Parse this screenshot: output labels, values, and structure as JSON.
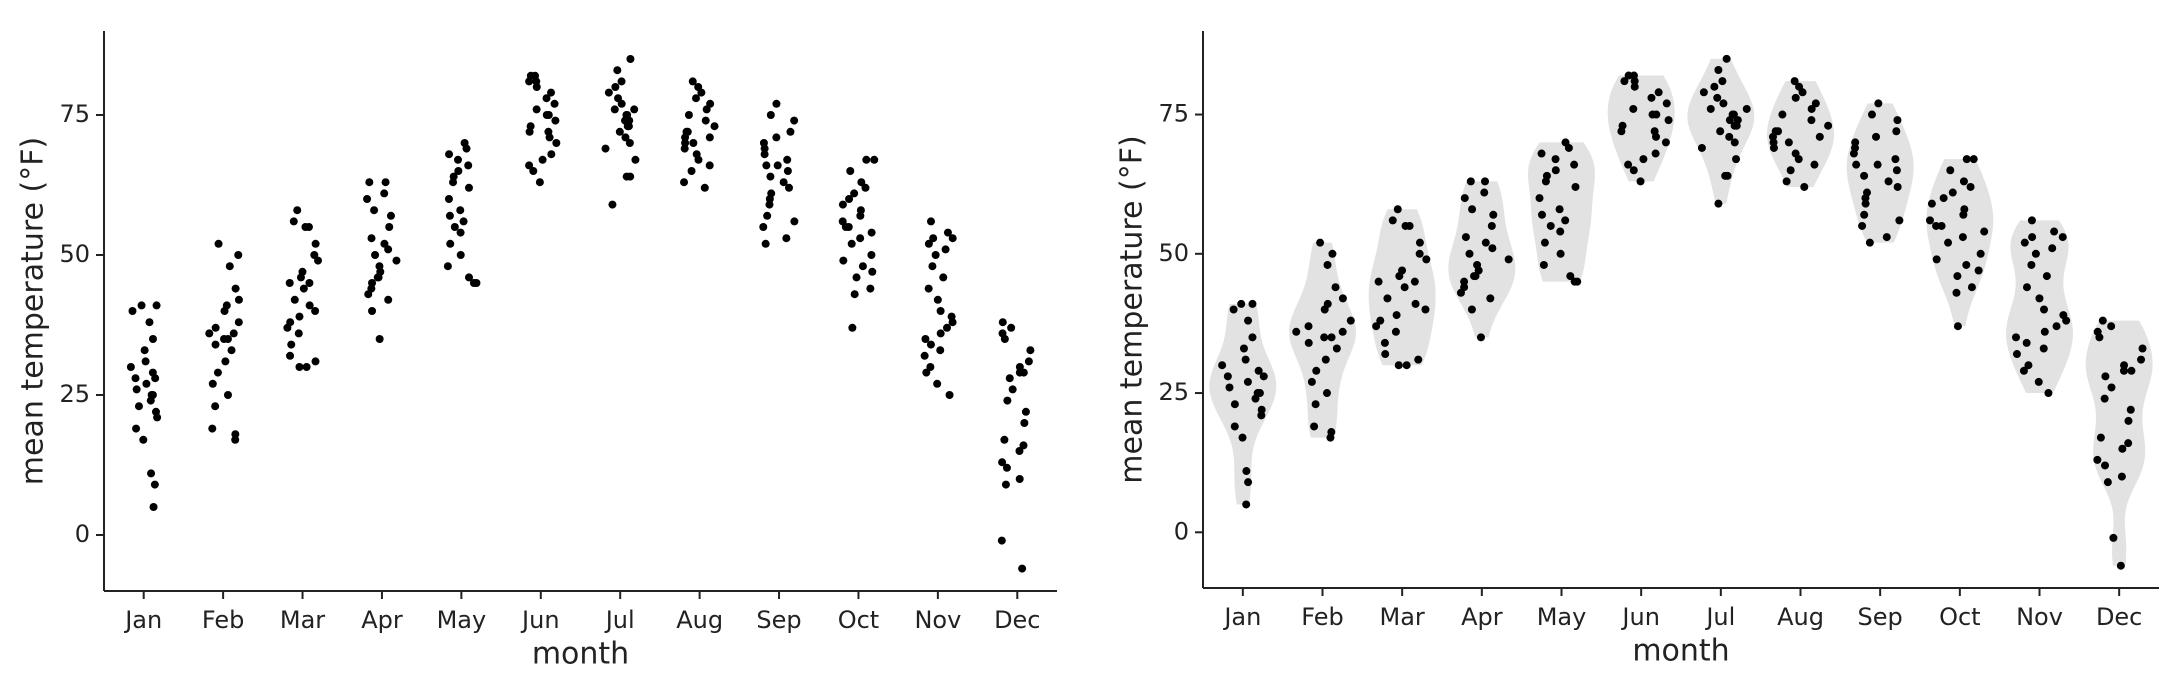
{
  "chart_data": [
    {
      "type": "strip",
      "x_label": "month",
      "y_label": "mean temperature (°F)",
      "categories": [
        "Jan",
        "Feb",
        "Mar",
        "Apr",
        "May",
        "Jun",
        "Jul",
        "Aug",
        "Sep",
        "Oct",
        "Nov",
        "Dec"
      ],
      "values": [
        [
          5,
          9,
          11,
          17,
          19,
          21,
          22,
          23,
          24,
          25,
          25,
          26,
          27,
          28,
          28,
          29,
          30,
          31,
          33,
          35,
          38,
          40,
          41,
          41
        ],
        [
          17,
          18,
          19,
          23,
          25,
          27,
          29,
          31,
          33,
          34,
          35,
          35,
          36,
          36,
          37,
          38,
          40,
          41,
          42,
          44,
          48,
          50,
          52
        ],
        [
          30,
          30,
          31,
          32,
          34,
          36,
          37,
          38,
          39,
          40,
          41,
          42,
          44,
          45,
          45,
          46,
          47,
          49,
          50,
          52,
          55,
          55,
          56,
          58
        ],
        [
          35,
          40,
          42,
          43,
          44,
          45,
          46,
          46,
          47,
          48,
          49,
          50,
          51,
          52,
          53,
          55,
          57,
          58,
          60,
          61,
          63,
          63
        ],
        [
          45,
          45,
          46,
          48,
          50,
          52,
          54,
          55,
          56,
          57,
          58,
          60,
          62,
          63,
          64,
          65,
          66,
          67,
          68,
          69,
          70
        ],
        [
          63,
          65,
          66,
          67,
          68,
          70,
          71,
          72,
          72,
          73,
          74,
          75,
          75,
          76,
          77,
          78,
          79,
          80,
          81,
          81,
          82,
          82
        ],
        [
          59,
          64,
          64,
          67,
          69,
          70,
          71,
          72,
          73,
          73,
          74,
          74,
          75,
          75,
          76,
          76,
          77,
          78,
          79,
          80,
          81,
          83,
          85
        ],
        [
          62,
          63,
          65,
          66,
          67,
          68,
          69,
          70,
          70,
          71,
          71,
          72,
          72,
          73,
          74,
          75,
          76,
          77,
          78,
          79,
          80,
          81
        ],
        [
          52,
          53,
          55,
          56,
          57,
          59,
          60,
          61,
          62,
          63,
          64,
          65,
          66,
          66,
          67,
          68,
          69,
          70,
          71,
          72,
          74,
          75,
          77
        ],
        [
          37,
          43,
          44,
          46,
          47,
          48,
          49,
          50,
          52,
          53,
          54,
          55,
          55,
          56,
          57,
          58,
          59,
          60,
          61,
          62,
          63,
          65,
          67,
          67
        ],
        [
          25,
          27,
          29,
          30,
          32,
          33,
          34,
          35,
          36,
          37,
          38,
          39,
          40,
          42,
          44,
          46,
          48,
          50,
          51,
          52,
          53,
          53,
          54,
          56
        ],
        [
          -6,
          -1,
          9,
          10,
          12,
          13,
          15,
          16,
          17,
          20,
          22,
          24,
          26,
          28,
          29,
          29,
          30,
          31,
          33,
          35,
          36,
          37,
          38
        ]
      ],
      "color": "#000000",
      "ylim": [
        -10,
        90
      ],
      "yticks": [
        0,
        25,
        50,
        75
      ]
    },
    {
      "type": "sina",
      "x_label": "month",
      "y_label": "mean temperature (°F)",
      "categories": [
        "Jan",
        "Feb",
        "Mar",
        "Apr",
        "May",
        "Jun",
        "Jul",
        "Aug",
        "Sep",
        "Oct",
        "Nov",
        "Dec"
      ],
      "values": [
        [
          5,
          9,
          11,
          17,
          19,
          21,
          22,
          23,
          24,
          25,
          25,
          26,
          27,
          28,
          28,
          29,
          30,
          31,
          33,
          35,
          38,
          40,
          41,
          41
        ],
        [
          17,
          18,
          19,
          23,
          25,
          27,
          29,
          31,
          33,
          34,
          35,
          35,
          36,
          36,
          37,
          38,
          40,
          41,
          42,
          44,
          48,
          50,
          52
        ],
        [
          30,
          30,
          31,
          32,
          34,
          36,
          37,
          38,
          39,
          40,
          41,
          42,
          44,
          45,
          45,
          46,
          47,
          49,
          50,
          52,
          55,
          55,
          56,
          58
        ],
        [
          35,
          40,
          42,
          43,
          44,
          45,
          46,
          46,
          47,
          48,
          49,
          50,
          51,
          52,
          53,
          55,
          57,
          58,
          60,
          61,
          63,
          63
        ],
        [
          45,
          45,
          46,
          48,
          50,
          52,
          54,
          55,
          56,
          57,
          58,
          60,
          62,
          63,
          64,
          65,
          66,
          67,
          68,
          69,
          70
        ],
        [
          63,
          65,
          66,
          67,
          68,
          70,
          71,
          72,
          72,
          73,
          74,
          75,
          75,
          76,
          77,
          78,
          79,
          80,
          81,
          81,
          82,
          82
        ],
        [
          59,
          64,
          64,
          67,
          69,
          70,
          71,
          72,
          73,
          73,
          74,
          74,
          75,
          75,
          76,
          76,
          77,
          78,
          79,
          80,
          81,
          83,
          85
        ],
        [
          62,
          63,
          65,
          66,
          67,
          68,
          69,
          70,
          70,
          71,
          71,
          72,
          72,
          73,
          74,
          75,
          76,
          77,
          78,
          79,
          80,
          81
        ],
        [
          52,
          53,
          55,
          56,
          57,
          59,
          60,
          61,
          62,
          63,
          64,
          65,
          66,
          66,
          67,
          68,
          69,
          70,
          71,
          72,
          74,
          75,
          77
        ],
        [
          37,
          43,
          44,
          46,
          47,
          48,
          49,
          50,
          52,
          53,
          54,
          55,
          55,
          56,
          57,
          58,
          59,
          60,
          61,
          62,
          63,
          65,
          67,
          67
        ],
        [
          25,
          27,
          29,
          30,
          32,
          33,
          34,
          35,
          36,
          37,
          38,
          39,
          40,
          42,
          44,
          46,
          48,
          50,
          51,
          52,
          53,
          53,
          54,
          56
        ],
        [
          -6,
          -1,
          9,
          10,
          12,
          13,
          15,
          16,
          17,
          20,
          22,
          24,
          26,
          28,
          29,
          29,
          30,
          31,
          33,
          35,
          36,
          37,
          38
        ]
      ],
      "color": "#000000",
      "violin_color": "#e2e2e2",
      "ylim": [
        -10,
        90
      ],
      "yticks": [
        0,
        25,
        50,
        75
      ]
    }
  ]
}
